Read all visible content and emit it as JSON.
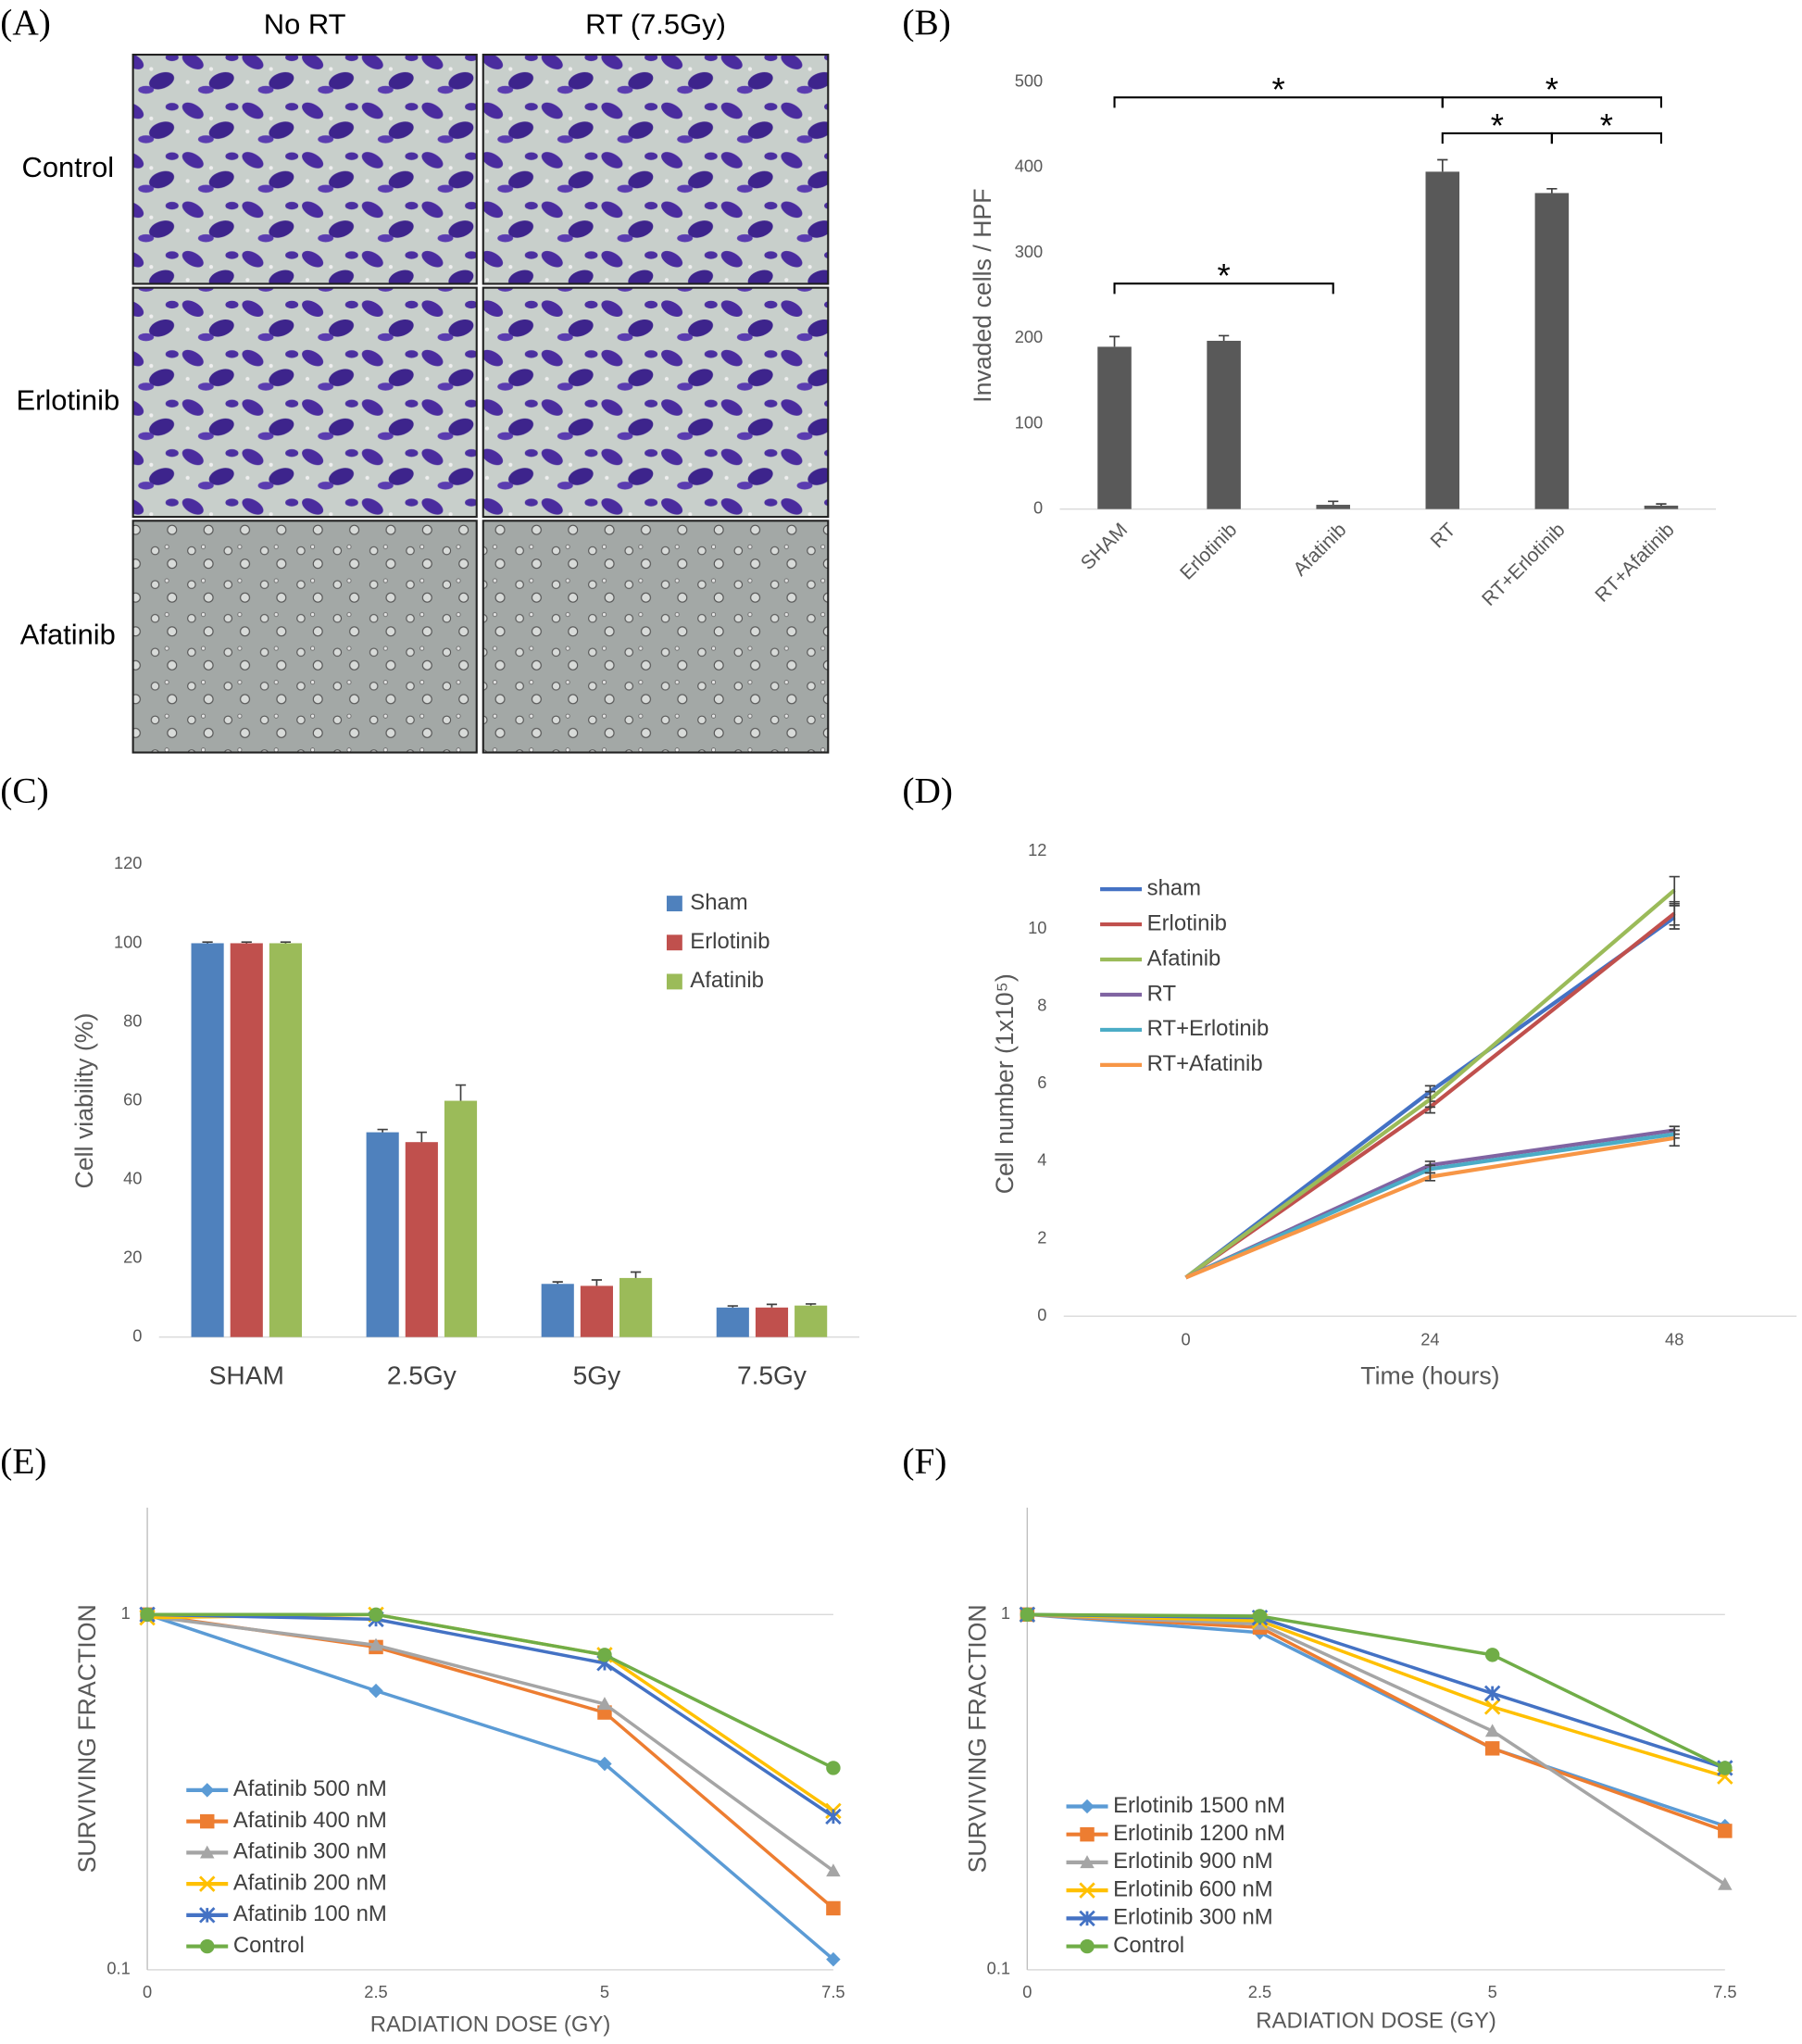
{
  "panel_a": {
    "panel": "(A)",
    "columns": [
      "No RT",
      "RT (7.5Gy)"
    ],
    "rows": [
      "Control",
      "Erlotinib",
      "Afatinib"
    ]
  },
  "chart_data": [
    {
      "type": "bar",
      "panel": "(B)",
      "ylabel": "Invaded cells / HPF",
      "categories": [
        "SHAM",
        "Erlotinib",
        "Afatinib",
        "RT",
        "RT+Erlotinib",
        "RT+Afatinib"
      ],
      "values": [
        190,
        197,
        5,
        395,
        370,
        4
      ],
      "errors": [
        12,
        6,
        4,
        14,
        5,
        2
      ],
      "color": "#595959",
      "ylim": [
        0,
        500
      ],
      "yticks": [
        0,
        100,
        200,
        300,
        400,
        500
      ],
      "grid": false,
      "significance": [
        {
          "label": "*",
          "between": [
            "SHAM",
            "RT"
          ],
          "y": 482
        },
        {
          "label": "*",
          "between": [
            "RT",
            "RT+Afatinib"
          ],
          "y": 482
        },
        {
          "label": "*",
          "between": [
            "RT",
            "RT+Erlotinib"
          ],
          "y": 440
        },
        {
          "label": "*",
          "between": [
            "RT+Erlotinib",
            "RT+Afatinib"
          ],
          "y": 440
        },
        {
          "label": "*",
          "between": [
            "SHAM",
            "Afatinib"
          ],
          "y": 264
        }
      ]
    },
    {
      "type": "bar",
      "panel": "(C)",
      "ylabel": "Cell viability (%)",
      "categories": [
        "SHAM",
        "2.5Gy",
        "5Gy",
        "7.5Gy"
      ],
      "series": [
        {
          "name": "Sham",
          "color": "#4f81bd",
          "values": [
            100,
            52,
            13.5,
            7.5
          ],
          "errors": [
            0.3,
            0.7,
            0.5,
            0.4
          ]
        },
        {
          "name": "Erlotinib",
          "color": "#c0504d",
          "values": [
            100,
            49.5,
            13,
            7.5
          ],
          "errors": [
            0.3,
            2.5,
            1.5,
            0.8
          ]
        },
        {
          "name": "Afatinib",
          "color": "#9bbb59",
          "values": [
            100,
            60,
            15,
            8
          ],
          "errors": [
            0.3,
            4,
            1.5,
            0.4
          ]
        }
      ],
      "ylim": [
        0,
        120
      ],
      "yticks": [
        0,
        20,
        40,
        60,
        80,
        100,
        120
      ],
      "grid": false,
      "legend": "upper right"
    },
    {
      "type": "line",
      "panel": "(D)",
      "ylabel": "Cell number (1x10⁵)",
      "xlabel": "Time (hours)",
      "x": [
        0,
        24,
        48
      ],
      "series": [
        {
          "name": "sham",
          "color": "#4472c4",
          "values": [
            1,
            5.8,
            10.3
          ],
          "errors": [
            0,
            0.15,
            0.3
          ]
        },
        {
          "name": "Erlotinib",
          "color": "#c0504d",
          "values": [
            1,
            5.4,
            10.4
          ],
          "errors": [
            0,
            0.15,
            0.3
          ]
        },
        {
          "name": "Afatinib",
          "color": "#9bbb59",
          "values": [
            1,
            5.6,
            11.0
          ],
          "errors": [
            0,
            0.2,
            0.35
          ]
        },
        {
          "name": "RT",
          "color": "#8064a2",
          "values": [
            1,
            3.9,
            4.8
          ],
          "errors": [
            0,
            0.1,
            0.1
          ]
        },
        {
          "name": "RT+Erlotinib",
          "color": "#4bacc6",
          "values": [
            1,
            3.8,
            4.7
          ],
          "errors": [
            0,
            0.1,
            0.1
          ]
        },
        {
          "name": "RT+Afatinib",
          "color": "#f79646",
          "values": [
            1,
            3.6,
            4.6
          ],
          "errors": [
            0,
            0.1,
            0.2
          ]
        }
      ],
      "xlim": [
        -12,
        60
      ],
      "xticks": [
        0,
        24,
        48
      ],
      "ylim": [
        0,
        12
      ],
      "yticks": [
        0,
        2,
        4,
        6,
        8,
        10,
        12
      ],
      "grid": false,
      "legend": "upper left"
    },
    {
      "type": "line",
      "panel": "(E)",
      "ylabel": "SURVIVING FRACTION",
      "xlabel": "RADIATION DOSE (GY)",
      "x": [
        0,
        2.5,
        5,
        7.5
      ],
      "series": [
        {
          "name": "Afatinib 500 nM",
          "color": "#5b9bd5",
          "marker": "diamond",
          "values": [
            1,
            0.61,
            0.38,
            0.107
          ]
        },
        {
          "name": "Afatinib 400 nM",
          "color": "#ed7d31",
          "marker": "square",
          "values": [
            1,
            0.81,
            0.53,
            0.149
          ]
        },
        {
          "name": "Afatinib 300 nM",
          "color": "#a5a5a5",
          "marker": "triangle",
          "values": [
            0.99,
            0.82,
            0.56,
            0.19
          ]
        },
        {
          "name": "Afatinib 200 nM",
          "color": "#ffc000",
          "marker": "x",
          "values": [
            0.98,
            1.0,
            0.77,
            0.28
          ]
        },
        {
          "name": "Afatinib 100 nM",
          "color": "#4472c4",
          "marker": "star",
          "values": [
            1,
            0.97,
            0.73,
            0.27
          ]
        },
        {
          "name": "Control",
          "color": "#70ad47",
          "marker": "circle",
          "values": [
            1,
            1.0,
            0.77,
            0.37
          ]
        }
      ],
      "xlim": [
        0,
        7.5
      ],
      "xticks": [
        0,
        2.5,
        5,
        7.5
      ],
      "ylim": [
        0.1,
        2
      ],
      "yticks": [
        0.1,
        1
      ],
      "log_scale": true,
      "grid": true,
      "legend": "lower left"
    },
    {
      "type": "line",
      "panel": "(F)",
      "ylabel": "SURVIVING FRACTION",
      "xlabel": "RADIATION DOSE (GY)",
      "x": [
        0,
        2.5,
        5,
        7.5
      ],
      "series": [
        {
          "name": "Erlotinib 1500 nM",
          "color": "#5b9bd5",
          "marker": "diamond",
          "values": [
            1,
            0.89,
            0.42,
            0.254
          ]
        },
        {
          "name": "Erlotinib 1200 nM",
          "color": "#ed7d31",
          "marker": "square",
          "values": [
            1,
            0.92,
            0.42,
            0.246
          ]
        },
        {
          "name": "Erlotinib 900 nM",
          "color": "#a5a5a5",
          "marker": "triangle",
          "values": [
            1,
            0.94,
            0.47,
            0.174
          ]
        },
        {
          "name": "Erlotinib 600 nM",
          "color": "#ffc000",
          "marker": "x",
          "values": [
            1,
            0.96,
            0.55,
            0.35
          ]
        },
        {
          "name": "Erlotinib 300 nM",
          "color": "#4472c4",
          "marker": "star",
          "values": [
            1,
            0.98,
            0.6,
            0.37
          ]
        },
        {
          "name": "Control",
          "color": "#70ad47",
          "marker": "circle",
          "values": [
            1,
            0.99,
            0.77,
            0.37
          ]
        }
      ],
      "xlim": [
        0,
        7.5
      ],
      "xticks": [
        0,
        2.5,
        5,
        7.5
      ],
      "ylim": [
        0.1,
        2
      ],
      "yticks": [
        0.1,
        1
      ],
      "log_scale": true,
      "grid": true,
      "legend": "lower left"
    }
  ]
}
